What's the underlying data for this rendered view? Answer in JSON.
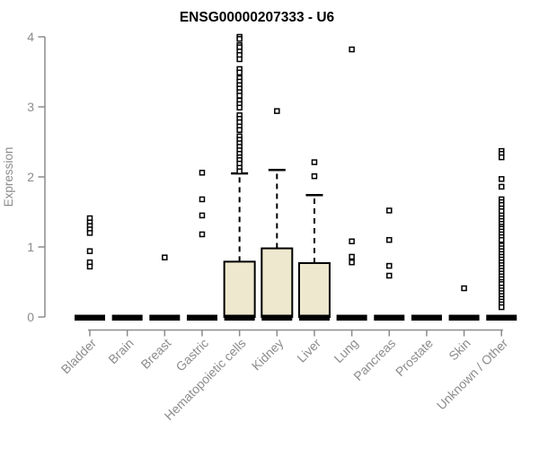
{
  "title": "ENSG00000207333 - U6",
  "colors": {
    "axis": "#8C8C8C",
    "text": "#8C8C8C",
    "title": "#000000",
    "box_fill": "#EDE8CE",
    "box_stroke": "#000000",
    "outlier_fill": "#FFFFFF",
    "outlier_stroke": "#000000"
  },
  "chart_data": {
    "type": "boxplot",
    "title": "ENSG00000207333 - U6",
    "xlabel": "",
    "ylabel": "Expression",
    "ylim": [
      0,
      4
    ],
    "yticks": [
      0,
      1,
      2,
      3,
      4
    ],
    "grid": false,
    "legend": false,
    "categories": [
      "Bladder",
      "Brain",
      "Breast",
      "Gastric",
      "Hematopoietic cells",
      "Kidney",
      "Liver",
      "Lung",
      "Pancreas",
      "Prostate",
      "Skin",
      "Unknown / Other"
    ],
    "boxes": [
      {
        "category": "Bladder",
        "median": 0,
        "q1": 0,
        "q3": 0,
        "whisker_low": 0,
        "whisker_high": 0,
        "outliers": [
          1.41,
          1.35,
          1.3,
          1.25,
          1.2,
          0.94,
          0.78,
          0.72
        ]
      },
      {
        "category": "Brain",
        "median": 0,
        "q1": 0,
        "q3": 0,
        "whisker_low": 0,
        "whisker_high": 0,
        "outliers": []
      },
      {
        "category": "Breast",
        "median": 0,
        "q1": 0,
        "q3": 0,
        "whisker_low": 0,
        "whisker_high": 0,
        "outliers": [
          0.85
        ]
      },
      {
        "category": "Gastric",
        "median": 0,
        "q1": 0,
        "q3": 0,
        "whisker_low": 0,
        "whisker_high": 0,
        "outliers": [
          2.06,
          1.68,
          1.45,
          1.18
        ]
      },
      {
        "category": "Hematopoietic cells",
        "median": 0,
        "q1": 0,
        "q3": 0.79,
        "whisker_low": 0,
        "whisker_high": 2.05,
        "outliers": [
          4.0,
          3.97,
          3.88,
          3.85,
          3.79,
          3.74,
          3.68,
          3.54,
          3.49,
          3.41,
          3.36,
          3.31,
          3.26,
          3.21,
          3.16,
          3.09,
          3.04,
          2.99,
          2.88,
          2.83,
          2.78,
          2.72,
          2.67,
          2.58,
          2.53,
          2.48,
          2.43,
          2.38,
          2.33,
          2.28,
          2.24,
          2.19,
          2.13,
          2.08
        ]
      },
      {
        "category": "Kidney",
        "median": 0,
        "q1": 0,
        "q3": 0.98,
        "whisker_low": 0,
        "whisker_high": 2.1,
        "outliers": [
          2.94
        ]
      },
      {
        "category": "Liver",
        "median": 0,
        "q1": 0,
        "q3": 0.77,
        "whisker_low": 0,
        "whisker_high": 1.74,
        "outliers": [
          2.21,
          2.01
        ]
      },
      {
        "category": "Lung",
        "median": 0,
        "q1": 0,
        "q3": 0,
        "whisker_low": 0,
        "whisker_high": 0,
        "outliers": [
          3.82,
          1.08,
          0.86,
          0.78
        ]
      },
      {
        "category": "Pancreas",
        "median": 0,
        "q1": 0,
        "q3": 0,
        "whisker_low": 0,
        "whisker_high": 0,
        "outliers": [
          1.52,
          1.1,
          0.73,
          0.59
        ]
      },
      {
        "category": "Prostate",
        "median": 0,
        "q1": 0,
        "q3": 0,
        "whisker_low": 0,
        "whisker_high": 0,
        "outliers": []
      },
      {
        "category": "Skin",
        "median": 0,
        "q1": 0,
        "q3": 0,
        "whisker_low": 0,
        "whisker_high": 0,
        "outliers": [
          0.41
        ]
      },
      {
        "category": "Unknown / Other",
        "median": 0,
        "q1": 0,
        "q3": 0,
        "whisker_low": 0,
        "whisker_high": 0,
        "outliers": [
          2.37,
          2.33,
          2.28,
          1.97,
          1.86,
          1.68,
          1.64,
          1.6,
          1.55,
          1.51,
          1.45,
          1.41,
          1.37,
          1.33,
          1.29,
          1.26,
          1.22,
          1.18,
          1.14,
          1.1,
          1.02,
          0.98,
          0.94,
          0.9,
          0.86,
          0.82,
          0.78,
          0.74,
          0.7,
          0.66,
          0.62,
          0.58,
          0.54,
          0.5,
          0.47,
          0.42,
          0.38,
          0.34,
          0.3,
          0.26,
          0.22,
          0.18,
          0.14
        ]
      }
    ]
  }
}
